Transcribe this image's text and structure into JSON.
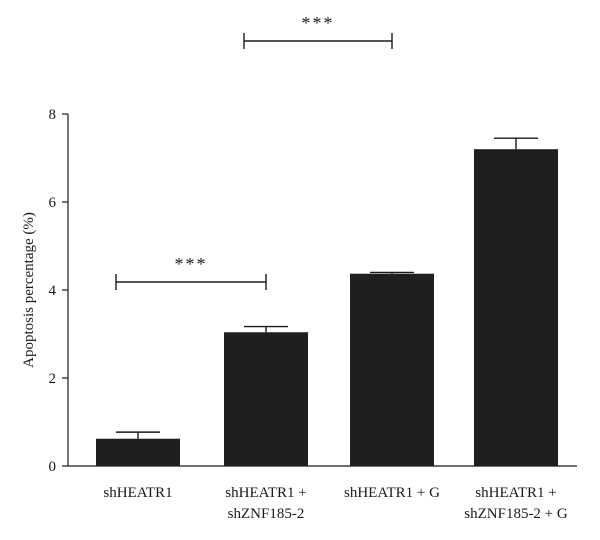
{
  "chart_data": {
    "type": "bar",
    "categories": [
      [
        "shHEATR1"
      ],
      [
        "shHEATR1 +",
        "shZNF185-2"
      ],
      [
        "shHEATR1 + G"
      ],
      [
        "shHEATR1 +",
        "shZNF185-2 + G"
      ]
    ],
    "values": [
      0.62,
      3.04,
      4.37,
      7.2
    ],
    "errors": [
      0.15,
      0.13,
      0.03,
      0.25
    ],
    "ylabel": "Apoptosis percentage (%)",
    "xlabel": "",
    "ylim": [
      0,
      8
    ],
    "yticks": [
      0,
      2,
      4,
      6,
      8
    ],
    "significance": [
      {
        "from": 0,
        "to": 1,
        "label": "***"
      },
      {
        "from": 1,
        "to": 2,
        "label": "***"
      }
    ],
    "bar_color": "#1f1f1f",
    "grid": false
  }
}
